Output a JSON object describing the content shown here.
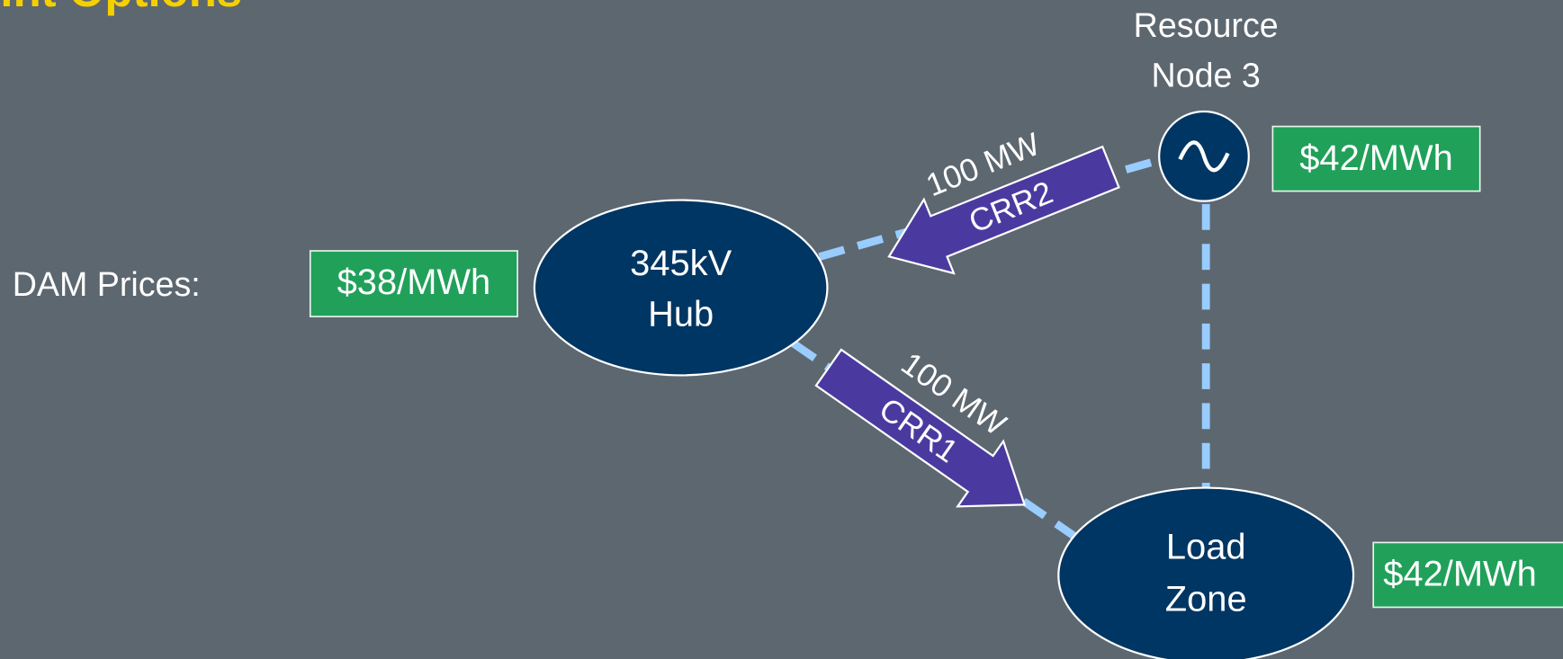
{
  "header": {
    "title": "int Options"
  },
  "dam_label": "DAM Prices:",
  "nodes": [
    {
      "label": [
        "345kV",
        "Hub"
      ],
      "price": "$38/MWh"
    },
    {
      "label": [
        "Resource",
        "Node 3"
      ],
      "price": "$42/MWh"
    },
    {
      "label": [
        "Load",
        "Zone"
      ],
      "price": "$42/MWh"
    }
  ],
  "arrows": [
    {
      "name": "CRR2",
      "amount": "100 MW"
    },
    {
      "name": "CRR1",
      "amount": "100 MW"
    }
  ]
}
